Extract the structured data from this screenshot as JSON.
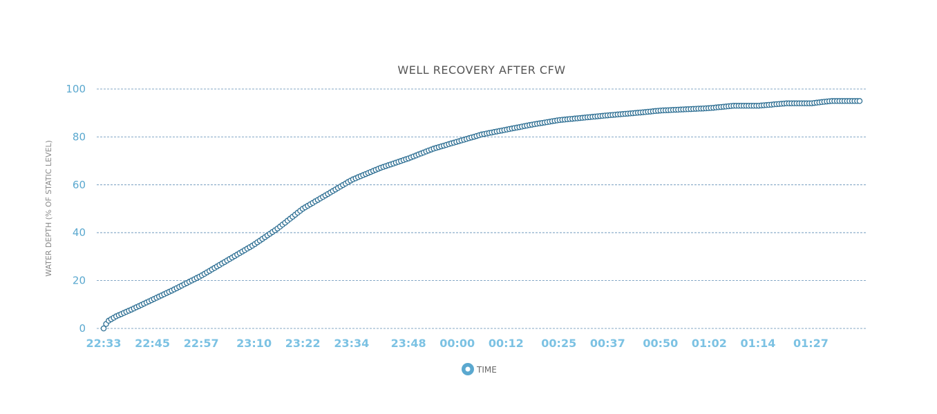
{
  "chart_data": {
    "type": "line",
    "title": "WELL RECOVERY AFTER CFW",
    "ylabel": "WATER DEPTH (% OF STATIC LEVEL)",
    "xlabel": "",
    "ylim": [
      0,
      100
    ],
    "yticks": [
      0,
      20,
      40,
      60,
      80,
      100
    ],
    "x_tick_labels": [
      "22:33",
      "22:45",
      "22:57",
      "23:10",
      "23:22",
      "23:34",
      "23:48",
      "00:00",
      "00:12",
      "00:25",
      "00:37",
      "00:50",
      "01:02",
      "01:14",
      "01:27"
    ],
    "grid": true,
    "legend_position": "bottom-center",
    "series": [
      {
        "name": "TIME",
        "color": "#2e6f93",
        "marker": "hollow-circle",
        "points": [
          {
            "t": "22:33",
            "y": 0
          },
          {
            "t": "22:34",
            "y": 3
          },
          {
            "t": "22:36",
            "y": 5
          },
          {
            "t": "22:40",
            "y": 8
          },
          {
            "t": "22:45",
            "y": 12
          },
          {
            "t": "22:50",
            "y": 16
          },
          {
            "t": "22:57",
            "y": 22
          },
          {
            "t": "23:03",
            "y": 28
          },
          {
            "t": "23:10",
            "y": 35
          },
          {
            "t": "23:16",
            "y": 42
          },
          {
            "t": "23:22",
            "y": 50
          },
          {
            "t": "23:28",
            "y": 56
          },
          {
            "t": "23:34",
            "y": 62
          },
          {
            "t": "23:41",
            "y": 67
          },
          {
            "t": "23:48",
            "y": 71
          },
          {
            "t": "23:54",
            "y": 75
          },
          {
            "t": "00:00",
            "y": 78
          },
          {
            "t": "00:06",
            "y": 81
          },
          {
            "t": "00:12",
            "y": 83
          },
          {
            "t": "00:18",
            "y": 85
          },
          {
            "t": "00:25",
            "y": 87
          },
          {
            "t": "00:31",
            "y": 88
          },
          {
            "t": "00:37",
            "y": 89
          },
          {
            "t": "00:44",
            "y": 90
          },
          {
            "t": "00:50",
            "y": 91
          },
          {
            "t": "00:56",
            "y": 91.5
          },
          {
            "t": "01:02",
            "y": 92
          },
          {
            "t": "01:08",
            "y": 93
          },
          {
            "t": "01:14",
            "y": 93
          },
          {
            "t": "01:21",
            "y": 94
          },
          {
            "t": "01:27",
            "y": 94
          },
          {
            "t": "01:32",
            "y": 95
          },
          {
            "t": "01:39",
            "y": 95
          }
        ]
      }
    ]
  }
}
